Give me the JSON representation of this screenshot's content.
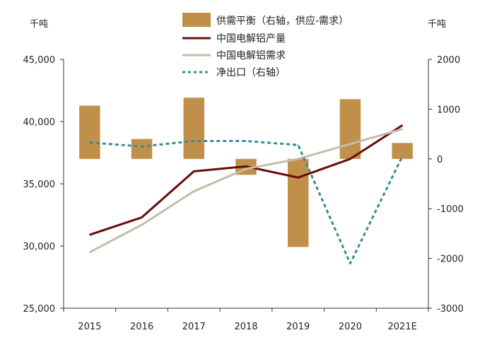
{
  "chart_data": {
    "type": "bar+line",
    "units": {
      "left": "千吨",
      "right": "千吨"
    },
    "categories": [
      "2015",
      "2016",
      "2017",
      "2018",
      "2019",
      "2020",
      "2021E"
    ],
    "left_axis": {
      "ylim": [
        25000,
        45000
      ],
      "ticks": [
        "25,000",
        "30,000",
        "35,000",
        "40,000",
        "45,000"
      ],
      "tick_values": [
        25000,
        30000,
        35000,
        40000,
        45000
      ]
    },
    "right_axis": {
      "ylim": [
        -3000,
        2000
      ],
      "ticks": [
        "-3000",
        "-2000",
        "-1000",
        "0",
        "1000",
        "2000"
      ],
      "tick_values": [
        -3000,
        -2000,
        -1000,
        0,
        1000,
        2000
      ]
    },
    "series": [
      {
        "name": "供需平衡（右轴，供应-需求）",
        "kind": "bar",
        "axis": "right",
        "color": "#c0904a",
        "values": [
          1070,
          400,
          1230,
          -320,
          -1770,
          1200,
          320
        ]
      },
      {
        "name": "中国电解铝产量",
        "kind": "line",
        "axis": "left",
        "color": "#6b0a0a",
        "values": [
          30900,
          32300,
          36000,
          36400,
          35500,
          37000,
          39700
        ]
      },
      {
        "name": "中国电解铝需求",
        "kind": "line",
        "axis": "left",
        "color": "#c0beaa",
        "values": [
          29500,
          31700,
          34400,
          36200,
          37000,
          38200,
          39400
        ]
      },
      {
        "name": "净出口（右轴）",
        "kind": "dashed-line",
        "axis": "right",
        "color": "#3a8c95",
        "values": [
          330,
          250,
          360,
          360,
          280,
          -2100,
          50
        ]
      }
    ]
  }
}
